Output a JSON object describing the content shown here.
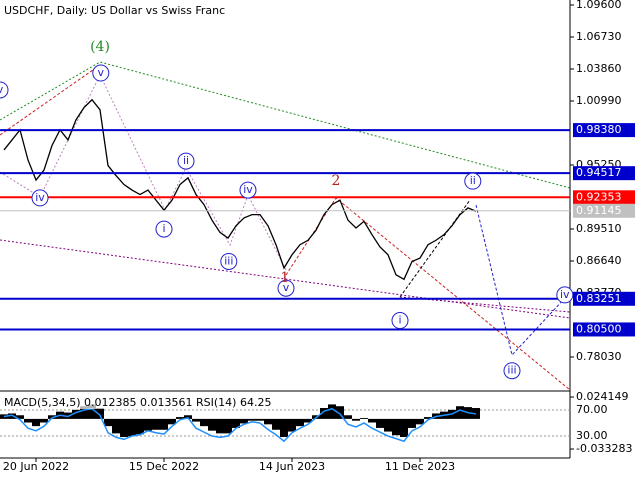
{
  "chart_data": [
    {
      "type": "line",
      "title": "USDCHF, Daily:  US Dollar vs Swiss Franc",
      "color": "#000000",
      "categories": [
        null,
        null,
        null,
        null,
        "20 Jun 2022",
        null,
        null,
        null,
        null,
        null,
        null,
        null,
        null,
        null,
        null,
        null,
        null,
        null,
        null,
        null,
        "15 Dec 2022",
        null,
        null,
        null,
        null,
        null,
        null,
        null,
        null,
        null,
        null,
        null,
        null,
        null,
        null,
        null,
        "14 Jun 2023",
        null,
        null,
        null,
        null,
        null,
        null,
        null,
        null,
        null,
        null,
        null,
        null,
        null,
        null,
        null,
        "11 Dec 2023",
        null,
        null,
        null,
        null,
        null,
        null,
        null
      ],
      "values": [
        0.966,
        0.975,
        0.984,
        0.957,
        0.939,
        0.948,
        0.97,
        0.984,
        0.975,
        0.993,
        1.004,
        1.011,
        1.002,
        0.952,
        0.943,
        0.935,
        0.93,
        0.926,
        0.93,
        0.921,
        0.912,
        0.921,
        0.935,
        0.941,
        0.926,
        0.917,
        0.903,
        0.892,
        0.887,
        0.898,
        0.905,
        0.908,
        0.908,
        0.898,
        0.881,
        0.86,
        0.872,
        0.881,
        0.885,
        0.894,
        0.908,
        0.917,
        0.921,
        0.903,
        0.896,
        0.902,
        0.89,
        0.879,
        0.872,
        0.854,
        0.85,
        0.866,
        0.869,
        0.881,
        0.885,
        0.89,
        0.898,
        0.908,
        0.914,
        0.911
      ],
      "ylim": [
        0.7507,
        1.096
      ],
      "yticks": [
        {
          "value": 1.096,
          "label": "1.09600"
        },
        {
          "value": 1.0673,
          "label": "1.06730"
        },
        {
          "value": 1.0386,
          "label": "1.03860"
        },
        {
          "value": 1.0099,
          "label": "1.00990"
        },
        {
          "value": 0.9525,
          "label": "0.95250"
        },
        {
          "value": 0.8951,
          "label": "0.89510"
        },
        {
          "value": 0.8664,
          "label": "0.86640"
        },
        {
          "value": 0.8377,
          "label": "0.83770"
        },
        {
          "value": 0.7803,
          "label": "0.78030"
        }
      ],
      "levels": [
        {
          "value": 0.9838,
          "label": "0.98380",
          "color": "#0000cc"
        },
        {
          "value": 0.94517,
          "label": "0.94517",
          "color": "#0000cc"
        },
        {
          "value": 0.92353,
          "label": "0.92353",
          "color": "#ff0000"
        },
        {
          "value": 0.91145,
          "label": "0.91145",
          "color": "#c0c0c0"
        },
        {
          "value": 0.83251,
          "label": "0.83251",
          "color": "#0000cc"
        },
        {
          "value": 0.805,
          "label": "0.80500",
          "color": "#0000cc"
        }
      ],
      "annotations": [
        {
          "text": "v",
          "x": -0.5,
          "y": 1.0198,
          "color": "#2222cc",
          "circled": true
        },
        {
          "text": "(4)",
          "x": 12,
          "y": 1.0583,
          "color": "#228b22",
          "circled": false
        },
        {
          "text": "v",
          "x": 12.1,
          "y": 1.035,
          "color": "#2222cc",
          "circled": true
        },
        {
          "text": "iv",
          "x": 4.5,
          "y": 0.923,
          "color": "#2222cc",
          "circled": true
        },
        {
          "text": "ii",
          "x": 22.75,
          "y": 0.956,
          "color": "#2222cc",
          "circled": true
        },
        {
          "text": "i",
          "x": 20,
          "y": 0.895,
          "color": "#2222cc",
          "circled": true
        },
        {
          "text": "iv",
          "x": 30.5,
          "y": 0.93,
          "color": "#2222cc",
          "circled": true
        },
        {
          "text": "iii",
          "x": 28.1,
          "y": 0.866,
          "color": "#2222cc",
          "circled": true
        },
        {
          "text": "v",
          "x": 35.25,
          "y": 0.842,
          "color": "#2222cc",
          "circled": true
        },
        {
          "text": "2",
          "x": 41.5,
          "y": 0.938,
          "color": "#b22222",
          "circled": false
        },
        {
          "text": "1",
          "x": 35.1,
          "y": 0.851,
          "color": "#b22222",
          "circled": false
        },
        {
          "text": "ii",
          "x": 58.6,
          "y": 0.938,
          "color": "#2222cc",
          "circled": true
        },
        {
          "text": "i",
          "x": 49.5,
          "y": 0.813,
          "color": "#2222cc",
          "circled": true
        },
        {
          "text": "iii",
          "x": 63.5,
          "y": 0.768,
          "color": "#2222cc",
          "circled": true
        },
        {
          "text": "iv",
          "x": 70.1,
          "y": 0.836,
          "color": "#2222cc",
          "circled": true
        }
      ]
    },
    {
      "type": "bar",
      "title": "MACD(5,34,5) 0.012385 0.013561 RSI(14) 64.25",
      "color": "#000000",
      "ylim": [
        -0.0432,
        0.0286
      ],
      "yticks": [
        0.024149,
        -0.033283
      ],
      "y2lim": [
        -3.8,
        96.2
      ],
      "y2ticks": [
        {
          "value": 70,
          "label": "70.00"
        },
        {
          "value": 30,
          "label": "30.00"
        }
      ],
      "series": [
        {
          "color": "#000000",
          "values": [
            0.005,
            0.006,
            0.004,
            -0.004,
            -0.008,
            -0.004,
            0.004,
            0.008,
            0.007,
            0.01,
            0.014,
            0.016,
            0.012,
            -0.008,
            -0.016,
            -0.02,
            -0.019,
            -0.017,
            -0.013,
            -0.012,
            -0.012,
            -0.006,
            0.002,
            0.004,
            -0.003,
            -0.008,
            -0.013,
            -0.016,
            -0.016,
            -0.01,
            -0.005,
            -0.002,
            -0.002,
            -0.006,
            -0.012,
            -0.02,
            -0.014,
            -0.008,
            -0.004,
            0.004,
            0.012,
            0.016,
            0.014,
            0.004,
            -0.002,
            0.001,
            -0.004,
            -0.01,
            -0.014,
            -0.018,
            -0.02,
            -0.01,
            -0.006,
            0.002,
            0.006,
            0.008,
            0.01,
            0.014,
            0.013,
            0.012
          ]
        },
        {
          "color": "#1e90ff",
          "axis": "y2",
          "values": [
            60,
            62,
            55,
            42,
            38,
            45,
            58,
            62,
            60,
            66,
            70,
            72,
            62,
            35,
            28,
            25,
            30,
            32,
            38,
            35,
            33,
            45,
            55,
            58,
            42,
            36,
            30,
            28,
            30,
            42,
            48,
            52,
            50,
            40,
            32,
            22,
            35,
            42,
            48,
            58,
            68,
            72,
            64,
            48,
            44,
            50,
            42,
            36,
            30,
            26,
            22,
            38,
            44,
            55,
            60,
            62,
            64,
            70,
            66,
            64
          ]
        }
      ]
    }
  ]
}
